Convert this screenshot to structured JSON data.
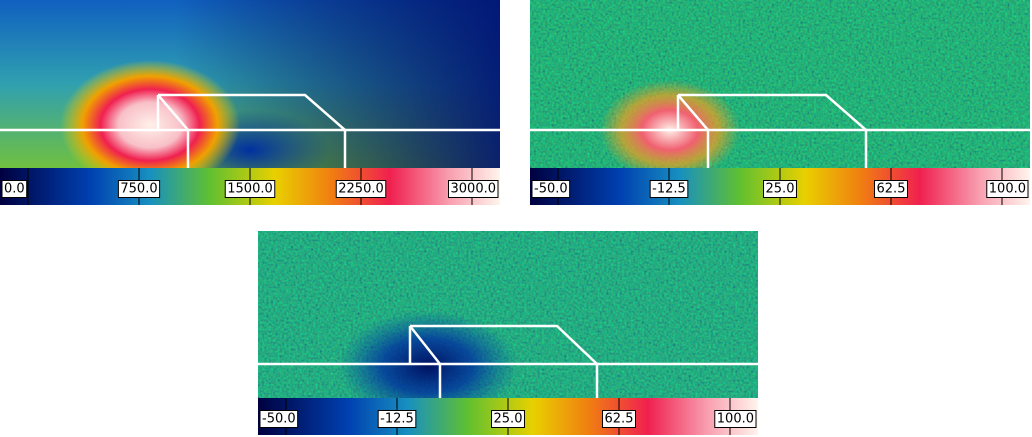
{
  "panels": [
    {
      "colorbar": {
        "ticks": [
          {
            "value": 0,
            "label": "0.0"
          },
          {
            "value": 750,
            "label": "750.0"
          },
          {
            "value": 1500,
            "label": "1500.0"
          },
          {
            "value": 2250,
            "label": "2250.0"
          },
          {
            "value": 3000,
            "label": "3000.0"
          }
        ]
      }
    },
    {
      "colorbar": {
        "ticks": [
          {
            "value": -50,
            "label": "-50.0"
          },
          {
            "value": -12.5,
            "label": "-12.5"
          },
          {
            "value": 25,
            "label": "25.0"
          },
          {
            "value": 62.5,
            "label": "62.5"
          },
          {
            "value": 100,
            "label": "100.0"
          }
        ]
      }
    },
    {
      "colorbar": {
        "ticks": [
          {
            "value": -50,
            "label": "-50.0"
          },
          {
            "value": -12.5,
            "label": "-12.5"
          },
          {
            "value": 25,
            "label": "25.0"
          },
          {
            "value": 62.5,
            "label": "62.5"
          },
          {
            "value": 100,
            "label": "100.0"
          }
        ]
      }
    }
  ]
}
